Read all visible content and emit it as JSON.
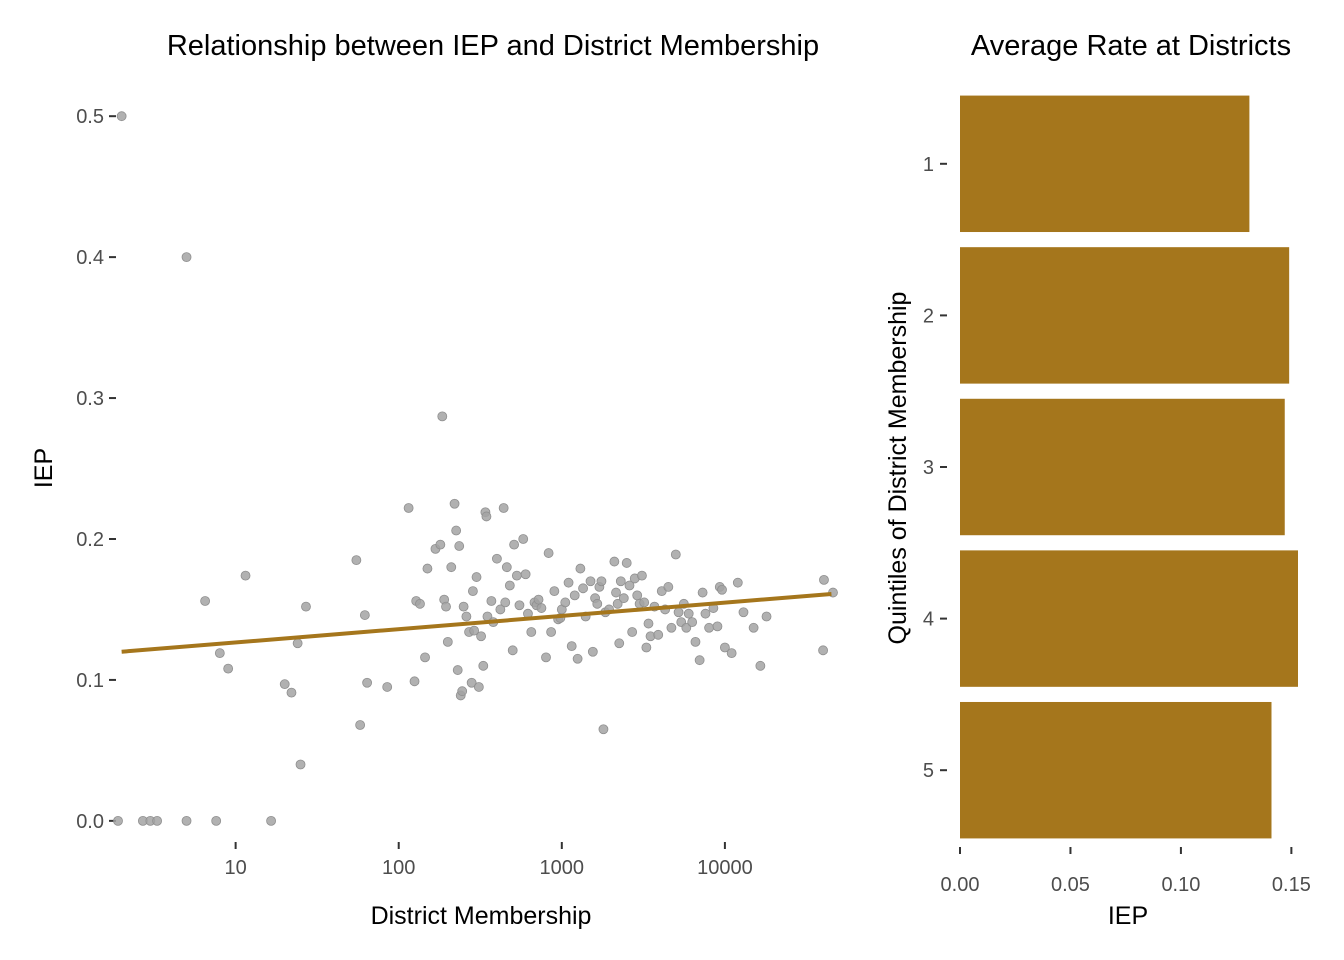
{
  "colors": {
    "accent": "#a5761c",
    "point": "#a3a3a3"
  },
  "chart_data": [
    {
      "type": "scatter",
      "title": "Relationship between IEP and District Membership",
      "xlabel": "District Membership",
      "ylabel": "IEP",
      "x_scale": "log10",
      "xlim": [
        1.9,
        48000
      ],
      "ylim": [
        -0.015,
        0.52
      ],
      "x_ticks": [
        10,
        100,
        1000,
        10000
      ],
      "x_tick_labels": [
        "10",
        "100",
        "1000",
        "10000"
      ],
      "y_ticks": [
        0.0,
        0.1,
        0.2,
        0.3,
        0.4,
        0.5
      ],
      "y_tick_labels": [
        "0.0",
        "0.1",
        "0.2",
        "0.3",
        "0.4",
        "0.5"
      ],
      "grid": false,
      "trend_line": {
        "type": "linear",
        "x": [
          2,
          45000
        ],
        "y": [
          0.12,
          0.161
        ]
      },
      "points": [
        [
          2,
          0.5
        ],
        [
          5,
          0.4
        ],
        [
          1.9,
          0
        ],
        [
          2.7,
          0
        ],
        [
          3,
          0
        ],
        [
          3.3,
          0
        ],
        [
          5,
          0
        ],
        [
          7.6,
          0
        ],
        [
          16.5,
          0
        ],
        [
          6.5,
          0.156
        ],
        [
          8,
          0.119
        ],
        [
          9,
          0.108
        ],
        [
          11.5,
          0.174
        ],
        [
          20,
          0.097
        ],
        [
          22,
          0.091
        ],
        [
          24,
          0.126
        ],
        [
          25,
          0.04
        ],
        [
          27,
          0.152
        ],
        [
          55,
          0.185
        ],
        [
          58,
          0.068
        ],
        [
          62,
          0.146
        ],
        [
          64,
          0.098
        ],
        [
          85,
          0.095
        ],
        [
          115,
          0.222
        ],
        [
          125,
          0.099
        ],
        [
          128,
          0.156
        ],
        [
          135,
          0.154
        ],
        [
          145,
          0.116
        ],
        [
          150,
          0.179
        ],
        [
          168,
          0.193
        ],
        [
          180,
          0.196
        ],
        [
          185,
          0.287
        ],
        [
          190,
          0.157
        ],
        [
          195,
          0.152
        ],
        [
          200,
          0.127
        ],
        [
          210,
          0.18
        ],
        [
          220,
          0.225
        ],
        [
          225,
          0.206
        ],
        [
          230,
          0.107
        ],
        [
          235,
          0.195
        ],
        [
          240,
          0.089
        ],
        [
          245,
          0.092
        ],
        [
          250,
          0.152
        ],
        [
          260,
          0.145
        ],
        [
          270,
          0.134
        ],
        [
          280,
          0.098
        ],
        [
          285,
          0.163
        ],
        [
          290,
          0.135
        ],
        [
          300,
          0.173
        ],
        [
          310,
          0.095
        ],
        [
          320,
          0.131
        ],
        [
          330,
          0.11
        ],
        [
          340,
          0.219
        ],
        [
          345,
          0.216
        ],
        [
          350,
          0.145
        ],
        [
          370,
          0.156
        ],
        [
          380,
          0.141
        ],
        [
          400,
          0.186
        ],
        [
          420,
          0.15
        ],
        [
          440,
          0.222
        ],
        [
          450,
          0.155
        ],
        [
          460,
          0.18
        ],
        [
          480,
          0.167
        ],
        [
          500,
          0.121
        ],
        [
          510,
          0.196
        ],
        [
          530,
          0.174
        ],
        [
          550,
          0.153
        ],
        [
          580,
          0.2
        ],
        [
          600,
          0.175
        ],
        [
          620,
          0.147
        ],
        [
          650,
          0.134
        ],
        [
          680,
          0.155
        ],
        [
          700,
          0.153
        ],
        [
          720,
          0.157
        ],
        [
          750,
          0.151
        ],
        [
          800,
          0.116
        ],
        [
          830,
          0.19
        ],
        [
          860,
          0.134
        ],
        [
          900,
          0.163
        ],
        [
          950,
          0.143
        ],
        [
          980,
          0.144
        ],
        [
          1000,
          0.15
        ],
        [
          1050,
          0.155
        ],
        [
          1100,
          0.169
        ],
        [
          1150,
          0.124
        ],
        [
          1200,
          0.16
        ],
        [
          1250,
          0.115
        ],
        [
          1300,
          0.179
        ],
        [
          1350,
          0.165
        ],
        [
          1400,
          0.145
        ],
        [
          1500,
          0.17
        ],
        [
          1550,
          0.12
        ],
        [
          1600,
          0.158
        ],
        [
          1650,
          0.154
        ],
        [
          1700,
          0.166
        ],
        [
          1750,
          0.17
        ],
        [
          1800,
          0.065
        ],
        [
          1850,
          0.148
        ],
        [
          1950,
          0.15
        ],
        [
          2100,
          0.184
        ],
        [
          2150,
          0.162
        ],
        [
          2200,
          0.154
        ],
        [
          2250,
          0.126
        ],
        [
          2300,
          0.17
        ],
        [
          2400,
          0.158
        ],
        [
          2500,
          0.183
        ],
        [
          2600,
          0.167
        ],
        [
          2700,
          0.134
        ],
        [
          2800,
          0.172
        ],
        [
          2900,
          0.16
        ],
        [
          3000,
          0.154
        ],
        [
          3100,
          0.174
        ],
        [
          3200,
          0.155
        ],
        [
          3300,
          0.123
        ],
        [
          3400,
          0.14
        ],
        [
          3500,
          0.131
        ],
        [
          3700,
          0.152
        ],
        [
          3900,
          0.132
        ],
        [
          4100,
          0.163
        ],
        [
          4300,
          0.15
        ],
        [
          4500,
          0.166
        ],
        [
          4700,
          0.137
        ],
        [
          5000,
          0.189
        ],
        [
          5200,
          0.148
        ],
        [
          5400,
          0.141
        ],
        [
          5600,
          0.154
        ],
        [
          5800,
          0.137
        ],
        [
          6000,
          0.147
        ],
        [
          6300,
          0.141
        ],
        [
          6600,
          0.127
        ],
        [
          7000,
          0.114
        ],
        [
          7300,
          0.162
        ],
        [
          7600,
          0.147
        ],
        [
          8000,
          0.137
        ],
        [
          8500,
          0.151
        ],
        [
          9000,
          0.138
        ],
        [
          9300,
          0.166
        ],
        [
          9600,
          0.164
        ],
        [
          10000,
          0.123
        ],
        [
          11000,
          0.119
        ],
        [
          12000,
          0.169
        ],
        [
          13000,
          0.148
        ],
        [
          15000,
          0.137
        ],
        [
          16500,
          0.11
        ],
        [
          18000,
          0.145
        ],
        [
          40000,
          0.121
        ],
        [
          40500,
          0.171
        ],
        [
          46000,
          0.162
        ]
      ]
    },
    {
      "type": "bar",
      "orientation": "horizontal",
      "title": "Average Rate at Districts",
      "xlabel": "IEP",
      "ylabel": "Quintiles of District Membership",
      "categories": [
        "1",
        "2",
        "3",
        "4",
        "5"
      ],
      "values": [
        0.131,
        0.149,
        0.147,
        0.153,
        0.141
      ],
      "xlim": [
        0,
        0.153
      ],
      "x_ticks": [
        0,
        0.05,
        0.1,
        0.15
      ],
      "x_tick_labels": [
        "0.00",
        "0.05",
        "0.10",
        "0.15"
      ],
      "grid": false
    }
  ]
}
